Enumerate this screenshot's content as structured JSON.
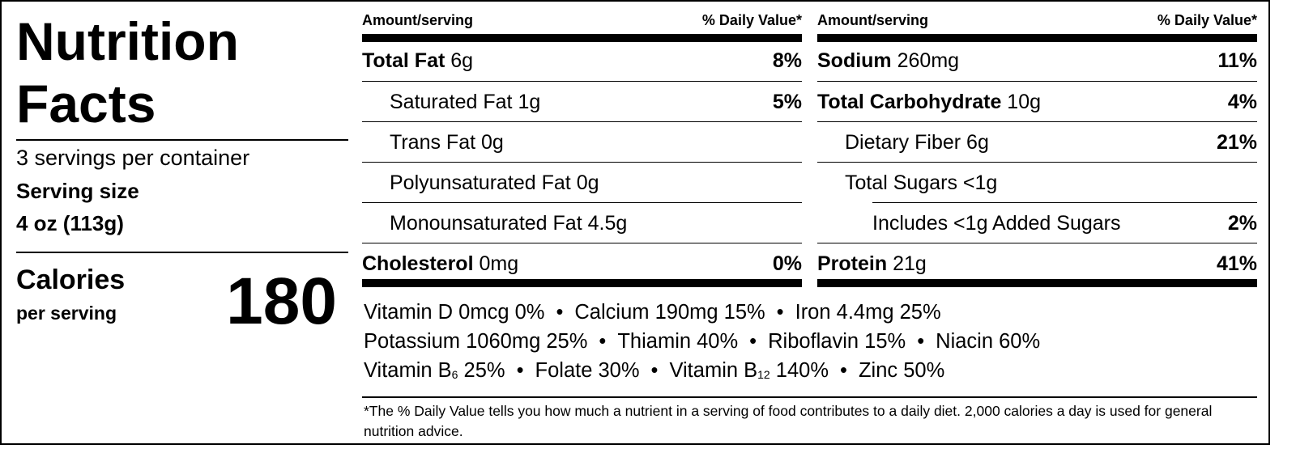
{
  "title": [
    "Nutrition",
    "Facts"
  ],
  "servings_per_container": "3 servings per container",
  "serving_size_label": "Serving size",
  "serving_size_value": "4 oz (113g)",
  "calories_label": "Calories",
  "calories_sub": "per serving",
  "calories_value": "180",
  "header": {
    "amount": "Amount/serving",
    "dv": "% Daily Value*"
  },
  "left_rows": [
    {
      "name": "Total Fat",
      "amount": "6g",
      "dv": "8%",
      "bold": true
    },
    {
      "name": "Saturated Fat",
      "amount": "1g",
      "dv": "5%",
      "indent": 1
    },
    {
      "name": "Trans Fat",
      "amount": "0g",
      "dv": "",
      "indent": 1
    },
    {
      "name": "Polyunsaturated Fat",
      "amount": "0g",
      "dv": "",
      "indent": 1
    },
    {
      "name": "Monounsaturated Fat",
      "amount": "4.5g",
      "dv": "",
      "indent": 1
    },
    {
      "name": "Cholesterol",
      "amount": "0mg",
      "dv": "0%",
      "bold": true
    }
  ],
  "right_rows": [
    {
      "name": "Sodium",
      "amount": "260mg",
      "dv": "11%",
      "bold": true
    },
    {
      "name": "Total Carbohydrate",
      "amount": "10g",
      "dv": "4%",
      "bold": true
    },
    {
      "name": "Dietary Fiber",
      "amount": "6g",
      "dv": "21%",
      "indent": 1
    },
    {
      "name": "Total Sugars",
      "amount": "<1g",
      "dv": "",
      "indent": 1
    },
    {
      "name": "Includes <1g Added Sugars",
      "amount": "",
      "dv": "2%",
      "indent": 2
    },
    {
      "name": "Protein",
      "amount": "21g",
      "dv": "41%",
      "bold": true
    }
  ],
  "vitamins": [
    [
      "Vitamin D 0mcg 0%",
      "Calcium 190mg 15%",
      "Iron 4.4mg 25%"
    ],
    [
      "Potassium 1060mg 25%",
      "Thiamin 40%",
      "Riboflavin 15%",
      "Niacin 60%"
    ],
    [
      "Vitamin B|6| 25%",
      "Folate 30%",
      "Vitamin B|12| 140%",
      "Zinc 50%"
    ]
  ],
  "separator": "•",
  "footnote": "*The % Daily Value tells you how much a nutrient in a serving of food contributes to a daily diet. 2,000 calories a day is used for general nutrition advice."
}
